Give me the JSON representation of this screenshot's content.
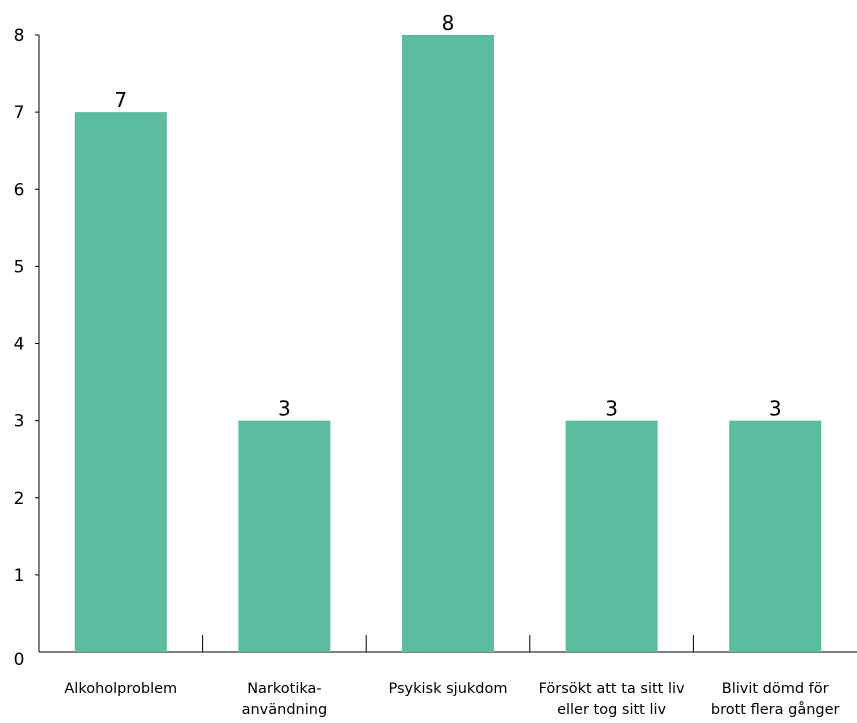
{
  "chart_data": {
    "type": "bar",
    "title": "",
    "xlabel": "",
    "ylabel": "",
    "categories": [
      [
        "Alkoholproblem"
      ],
      [
        "Narkotika-",
        "användning"
      ],
      [
        "Psykisk sjukdom"
      ],
      [
        "Försökt att ta sitt liv",
        "eller tog sitt liv"
      ],
      [
        "Blivit dömd för",
        "brott flera gånger"
      ]
    ],
    "values": [
      7,
      3,
      8,
      3,
      3
    ],
    "data_labels": [
      "7",
      "3",
      "8",
      "3",
      "3"
    ],
    "yticks": [
      "0",
      "1",
      "2",
      "3",
      "4",
      "5",
      "6",
      "7",
      "8"
    ],
    "ylim": [
      0,
      8
    ],
    "grid": false,
    "legend": "none",
    "bar_color": "#5bbc9f"
  }
}
